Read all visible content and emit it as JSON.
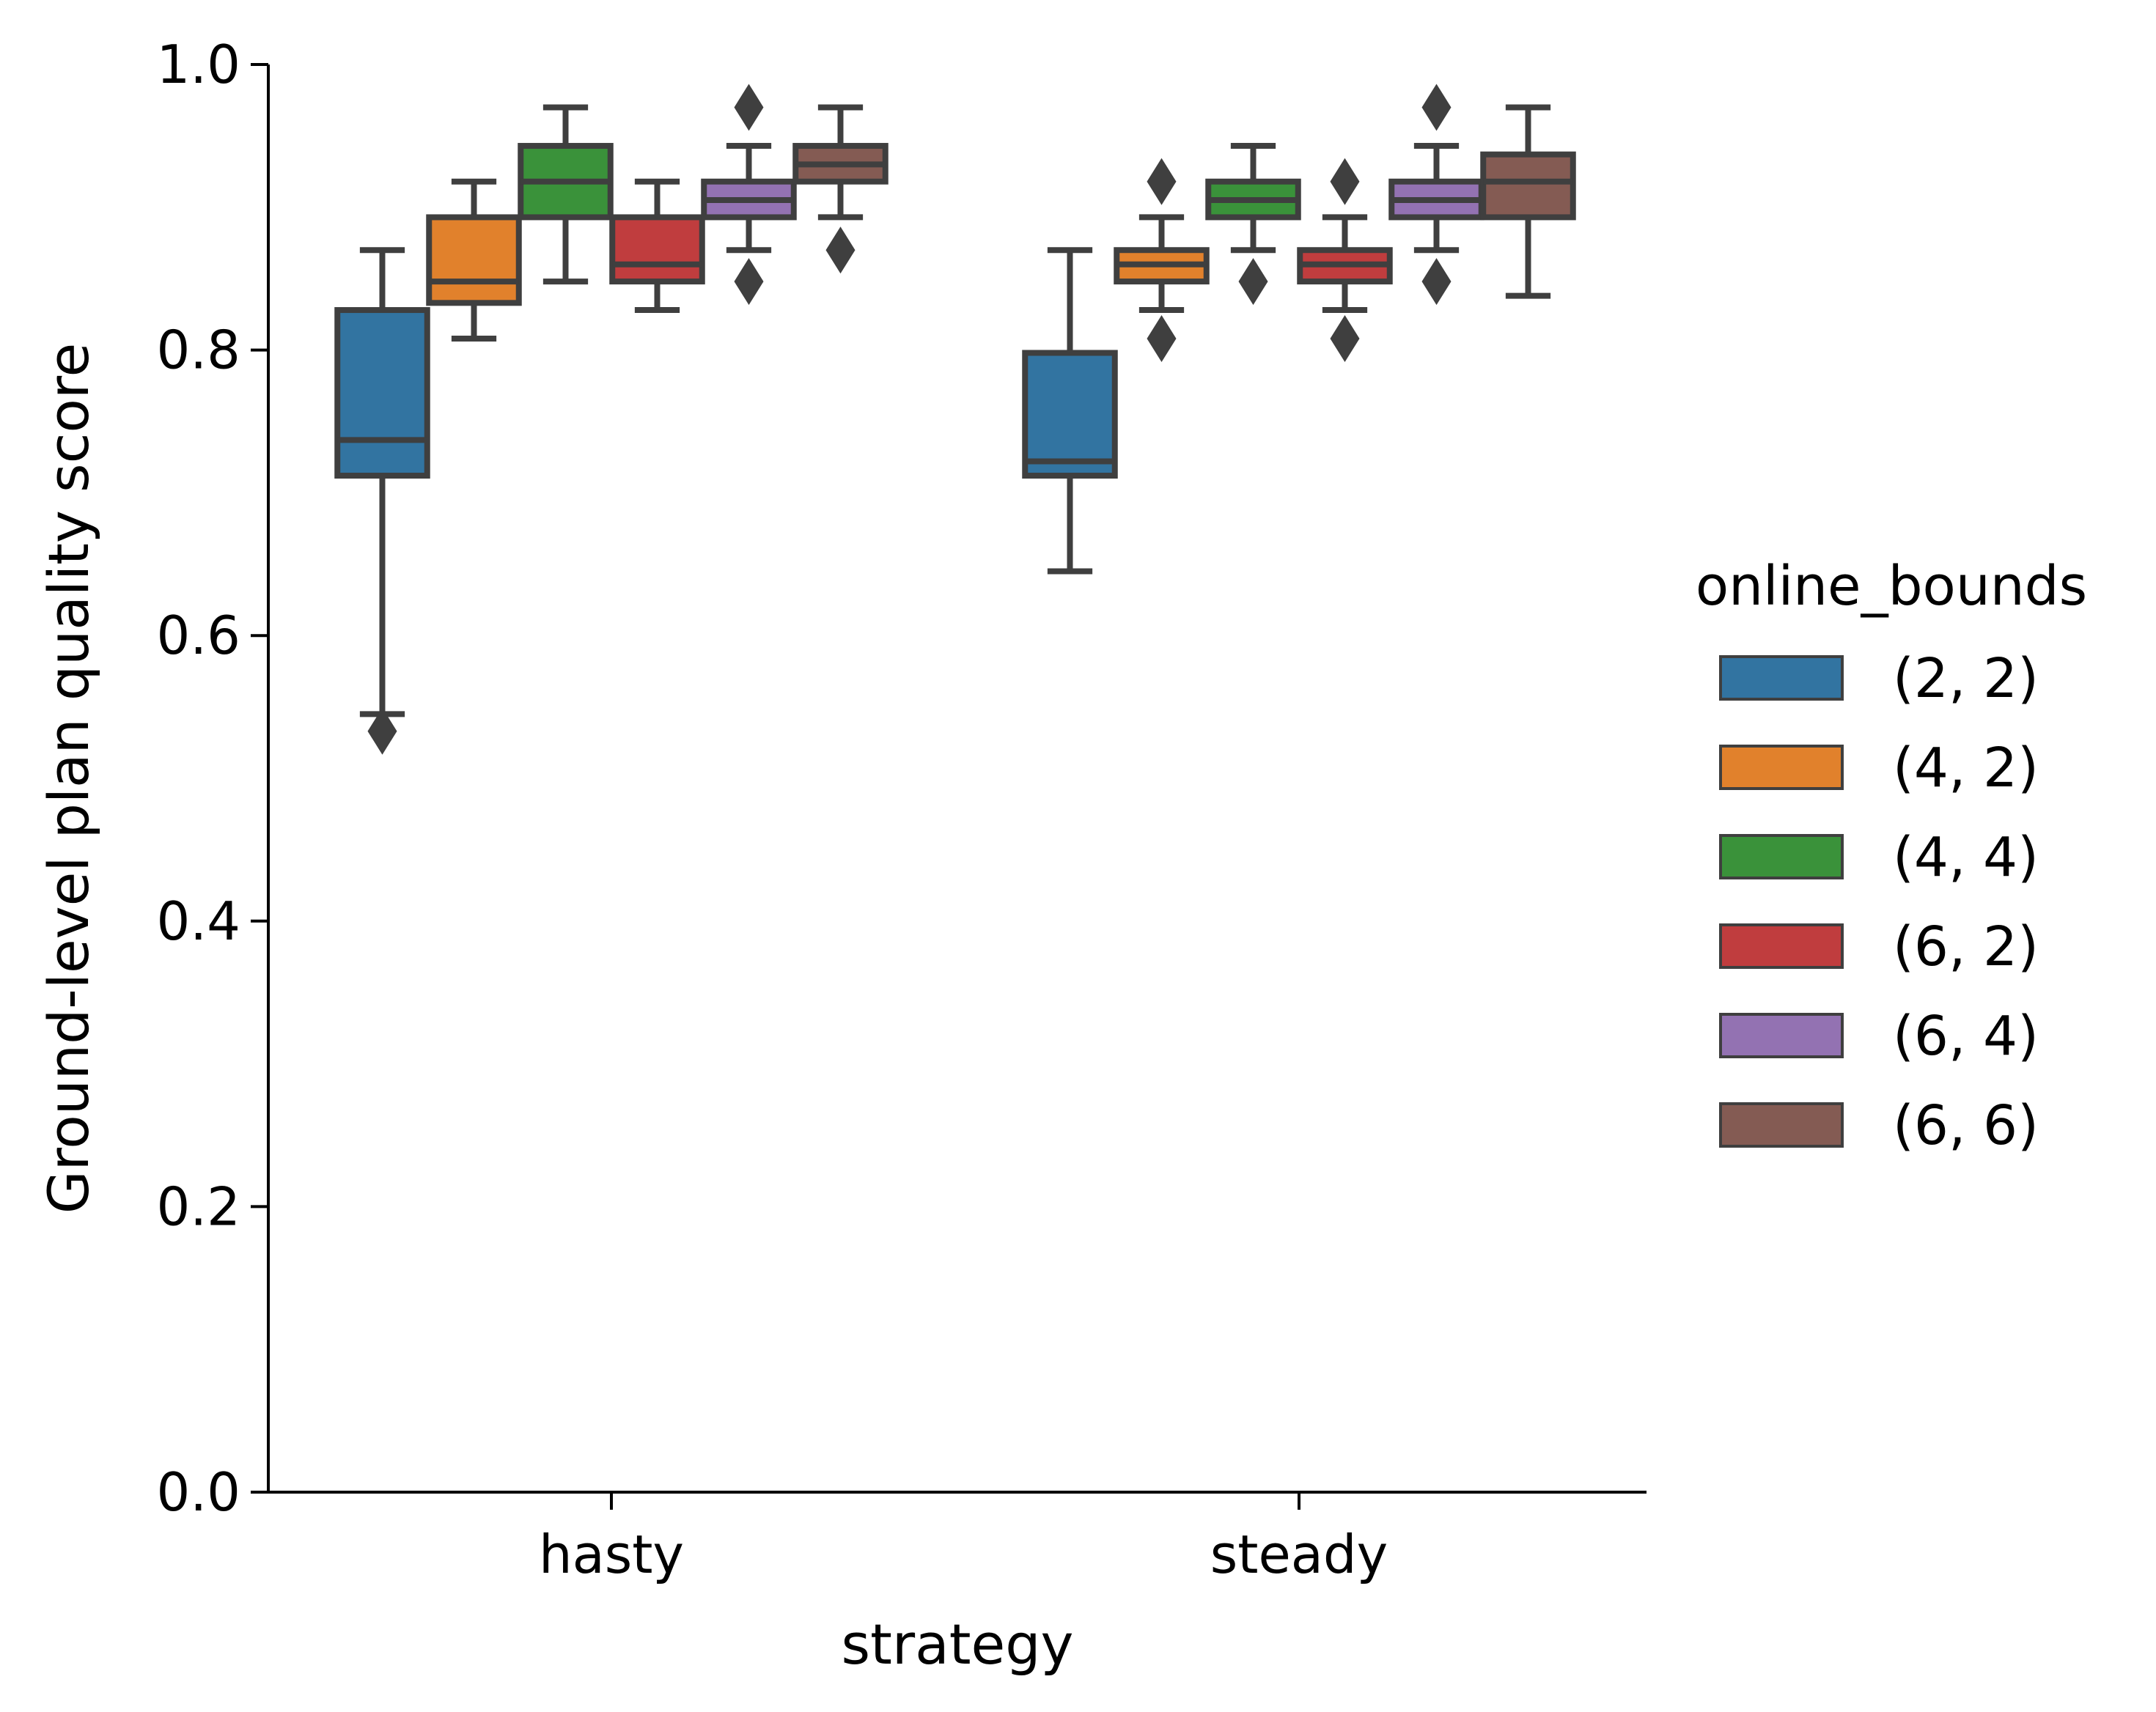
{
  "chart_data": {
    "type": "box",
    "xlabel": "strategy",
    "ylabel": "Ground-level plan quality score",
    "ylim": [
      0,
      1.0
    ],
    "yticks": [
      "0.0",
      "0.2",
      "0.4",
      "0.6",
      "0.8",
      "1.0"
    ],
    "categories": [
      "hasty",
      "steady"
    ],
    "grid": false,
    "legend": {
      "title": "online_bounds",
      "placement": "right"
    },
    "series": [
      {
        "name": "(2, 2)",
        "color": "#3274a1",
        "boxes": [
          {
            "category": "hasty",
            "whislo": 0.545,
            "q1": 0.712,
            "med": 0.737,
            "q3": 0.828,
            "whishi": 0.87,
            "fliers": [
              0.533
            ]
          },
          {
            "category": "steady",
            "whislo": 0.645,
            "q1": 0.712,
            "med": 0.722,
            "q3": 0.798,
            "whishi": 0.87,
            "fliers": []
          }
        ]
      },
      {
        "name": "(4, 2)",
        "color": "#e1812c",
        "boxes": [
          {
            "category": "hasty",
            "whislo": 0.808,
            "q1": 0.833,
            "med": 0.848,
            "q3": 0.893,
            "whishi": 0.918,
            "fliers": []
          },
          {
            "category": "steady",
            "whislo": 0.828,
            "q1": 0.848,
            "med": 0.86,
            "q3": 0.87,
            "whishi": 0.893,
            "fliers": [
              0.918,
              0.808
            ]
          }
        ]
      },
      {
        "name": "(4, 4)",
        "color": "#3a923a",
        "boxes": [
          {
            "category": "hasty",
            "whislo": 0.848,
            "q1": 0.893,
            "med": 0.918,
            "q3": 0.943,
            "whishi": 0.97,
            "fliers": []
          },
          {
            "category": "steady",
            "whislo": 0.87,
            "q1": 0.893,
            "med": 0.905,
            "q3": 0.918,
            "whishi": 0.943,
            "fliers": [
              0.848
            ]
          }
        ]
      },
      {
        "name": "(6, 2)",
        "color": "#c03d3e",
        "boxes": [
          {
            "category": "hasty",
            "whislo": 0.828,
            "q1": 0.848,
            "med": 0.86,
            "q3": 0.893,
            "whishi": 0.918,
            "fliers": []
          },
          {
            "category": "steady",
            "whislo": 0.828,
            "q1": 0.848,
            "med": 0.86,
            "q3": 0.87,
            "whishi": 0.893,
            "fliers": [
              0.918,
              0.808
            ]
          }
        ]
      },
      {
        "name": "(6, 4)",
        "color": "#9372b2",
        "boxes": [
          {
            "category": "hasty",
            "whislo": 0.87,
            "q1": 0.893,
            "med": 0.905,
            "q3": 0.918,
            "whishi": 0.943,
            "fliers": [
              0.97,
              0.848
            ]
          },
          {
            "category": "steady",
            "whislo": 0.87,
            "q1": 0.893,
            "med": 0.905,
            "q3": 0.918,
            "whishi": 0.943,
            "fliers": [
              0.97,
              0.848
            ]
          }
        ]
      },
      {
        "name": "(6, 6)",
        "color": "#845b53",
        "boxes": [
          {
            "category": "hasty",
            "whislo": 0.893,
            "q1": 0.918,
            "med": 0.93,
            "q3": 0.943,
            "whishi": 0.97,
            "fliers": [
              0.87
            ]
          },
          {
            "category": "steady",
            "whislo": 0.838,
            "q1": 0.893,
            "med": 0.918,
            "q3": 0.937,
            "whishi": 0.97,
            "fliers": []
          }
        ]
      }
    ]
  }
}
